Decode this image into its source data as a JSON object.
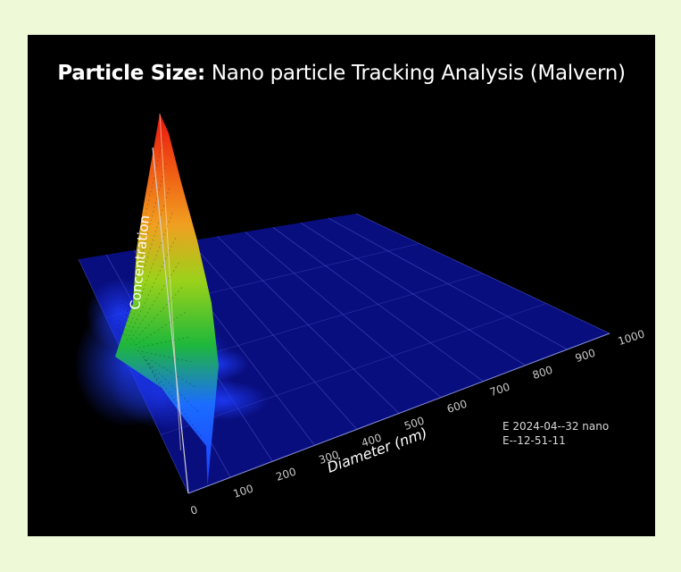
{
  "title": {
    "bold": "Particle Size:",
    "rest": " Nano particle Tracking Analysis (Malvern)"
  },
  "stamp": {
    "line1": "E 2024-04--32 nano",
    "line2": "E--12-51-11"
  },
  "chart_data": {
    "type": "area",
    "title": "Particle Size: Nano particle Tracking Analysis (Malvern)",
    "xlabel": "Diameter (nm)",
    "ylabel": "Concentration",
    "xlim": [
      0,
      1000
    ],
    "x_ticks": [
      "0",
      "100",
      "200",
      "300",
      "400",
      "500",
      "600",
      "700",
      "800",
      "900",
      "1000"
    ],
    "peak_diameter_nm": 130,
    "grid": true,
    "colors": {
      "floor": "#0a0f8c",
      "grid": "#4a55c8",
      "peak_low": "#1b3cff",
      "peak_mid": "#1fb83a",
      "peak_high": "#f0a020",
      "peak_top": "#e81410",
      "axis_text": "#c8c8c8",
      "label_text": "#ffffff"
    }
  }
}
